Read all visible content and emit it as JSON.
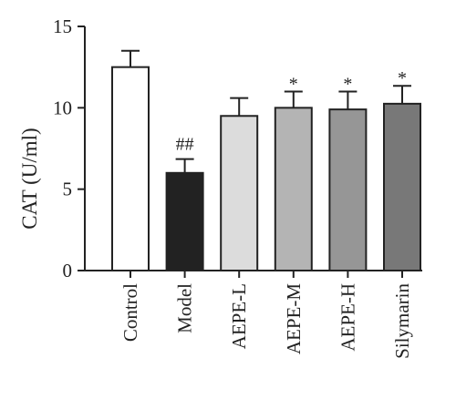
{
  "chart_data": {
    "type": "bar",
    "title": "",
    "xlabel": "",
    "ylabel": "CAT (U/ml)",
    "ylim": [
      0,
      15
    ],
    "yticks": [
      0,
      5,
      10,
      15
    ],
    "grid": false,
    "categories": [
      "Control",
      "Model",
      "AEPE-L",
      "AEPE-M",
      "AEPE-H",
      "Silymarin"
    ],
    "values": [
      12.5,
      6.0,
      9.5,
      10.0,
      9.9,
      10.25
    ],
    "errors": [
      1.0,
      0.85,
      1.1,
      1.0,
      1.1,
      1.1
    ],
    "annotations": [
      "",
      "##",
      "",
      "*",
      "*",
      "*"
    ],
    "bar_colors": [
      "#ffffff",
      "#222222",
      "#dcdcdc",
      "#b4b4b4",
      "#969696",
      "#787878"
    ]
  }
}
